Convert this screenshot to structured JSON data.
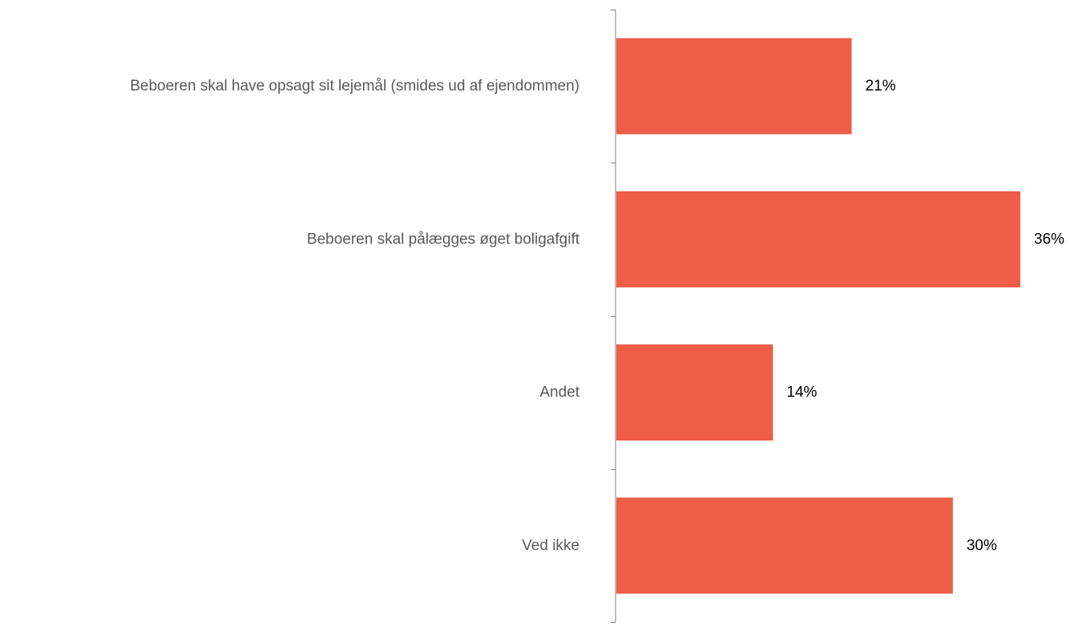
{
  "chart_data": {
    "type": "bar",
    "orientation": "horizontal",
    "categories": [
      "Beboeren skal have opsagt sit lejemål (smides ud af ejendommen)",
      "Beboeren skal pålægges øget boligafgift",
      "Andet",
      "Ved ikke"
    ],
    "values": [
      21,
      36,
      14,
      30
    ],
    "value_labels": [
      "21%",
      "36%",
      "14%",
      "30%"
    ],
    "unit": "%",
    "xlim": [
      0,
      36
    ],
    "grid": false,
    "legend": "none",
    "bar_color": "#EE5D48",
    "axis_color": "#7F7F7F"
  }
}
